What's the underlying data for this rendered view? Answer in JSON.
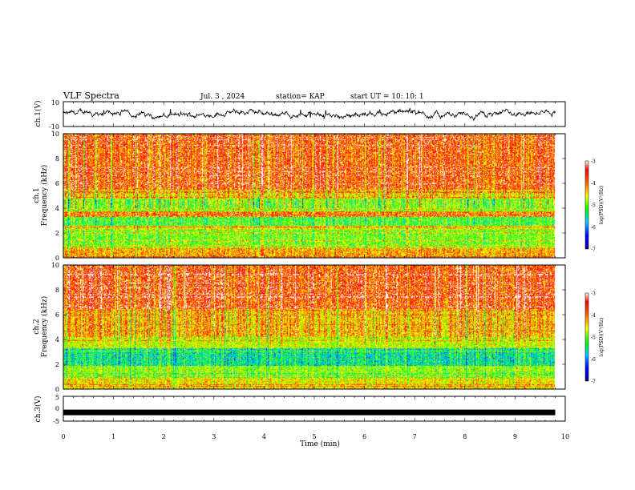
{
  "header": {
    "title": "VLF Spectra",
    "date": "Jul. 3 , 2024",
    "station": "station= KAP",
    "start": "start UT =  10: 10: 1"
  },
  "colors": {
    "spectrum": [
      "#000080",
      "#0000ff",
      "#0096ff",
      "#00e6e6",
      "#00ff00",
      "#b4ff00",
      "#ffff00",
      "#ffa000",
      "#ff2a00",
      "#ff0000",
      "#ffffff"
    ],
    "trace": "#000000"
  },
  "chart_data": [
    {
      "type": "line",
      "name": "ch1-waveform",
      "ylabel": "ch.1(V)",
      "ylim": [
        -10,
        10
      ],
      "yticks": [
        "10",
        "-10"
      ],
      "x_range_min": [
        0,
        9.8
      ],
      "mean_v": 0,
      "fluctuation_v": [
        -5,
        5
      ]
    },
    {
      "type": "heatmap",
      "name": "ch1-spectrogram",
      "ylabel": "ch.1\nFrequency (kHz)",
      "ylim": [
        0,
        10
      ],
      "yticks": [
        "0",
        "2",
        "4",
        "6",
        "8",
        "10"
      ],
      "x_range_min": [
        0,
        9.8
      ],
      "colorbar": {
        "label": "log(PSD)(V²/Hz)",
        "range": [
          -7,
          -3
        ],
        "ticks": [
          "-3",
          "-4",
          "-5",
          "-6",
          "-7"
        ]
      }
    },
    {
      "type": "heatmap",
      "name": "ch2-spectrogram",
      "ylabel": "ch.2\nFrequency (kHz)",
      "ylim": [
        0,
        10
      ],
      "yticks": [
        "0",
        "2",
        "4",
        "6",
        "8",
        "10"
      ],
      "x_range_min": [
        0,
        9.8
      ],
      "colorbar": {
        "label": "log(PSD)(V²/Hz)",
        "range": [
          -7,
          -3
        ],
        "ticks": [
          "-3",
          "-4",
          "-5",
          "-6",
          "-7"
        ]
      }
    },
    {
      "type": "line",
      "name": "ch3-waveform",
      "ylabel": "ch.3(V)",
      "ylim": [
        -5,
        5
      ],
      "yticks": [
        "5",
        "0",
        "-5"
      ],
      "x_range_min": [
        0,
        9.8
      ],
      "mean_v": -1.5
    }
  ],
  "xaxis": {
    "label": "Time (min)",
    "ticks": [
      "0",
      "1",
      "2",
      "3",
      "4",
      "5",
      "6",
      "7",
      "8",
      "9",
      "10"
    ],
    "range": [
      0,
      10
    ]
  }
}
